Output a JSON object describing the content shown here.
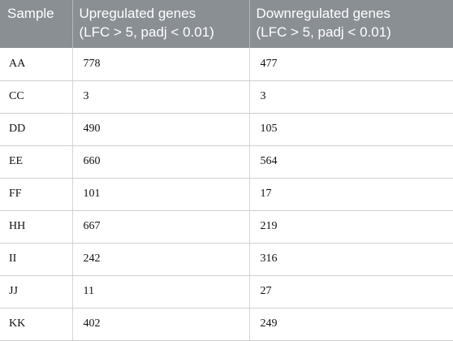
{
  "table": {
    "headers": [
      {
        "lines": [
          "Sample"
        ]
      },
      {
        "lines": [
          "Upregulated genes",
          "(LFC > 5, padj < 0.01)"
        ]
      },
      {
        "lines": [
          "Downregulated genes",
          "(LFC > 5, padj < 0.01)"
        ]
      }
    ],
    "rows": [
      [
        "AA",
        "778",
        "477"
      ],
      [
        "CC",
        "3",
        "3"
      ],
      [
        "DD",
        "490",
        "105"
      ],
      [
        "EE",
        "660",
        "564"
      ],
      [
        "FF",
        "101",
        "17"
      ],
      [
        "HH",
        "667",
        "219"
      ],
      [
        "II",
        "242",
        "316"
      ],
      [
        "JJ",
        "11",
        "27"
      ],
      [
        "KK",
        "402",
        "249"
      ]
    ]
  },
  "colors": {
    "header_background": "#8a8f94",
    "header_text": "#ffffff",
    "row_border": "#cfcfcf"
  }
}
